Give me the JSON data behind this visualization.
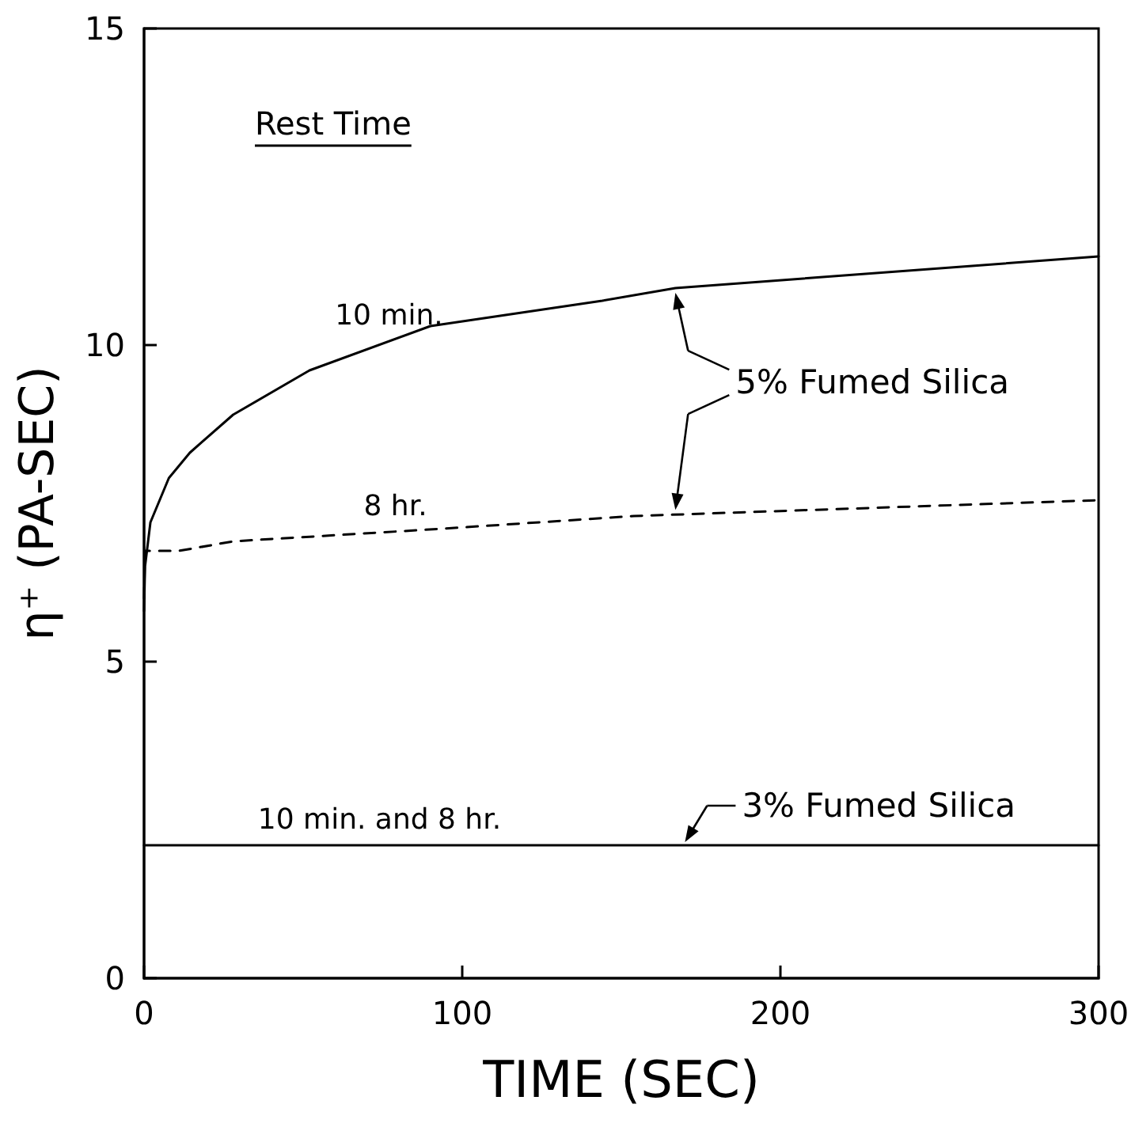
{
  "chart_data": {
    "type": "line",
    "xlabel": "TIME (SEC)",
    "ylabel": "η⁺ (PA-SEC)",
    "xlim": [
      0,
      300
    ],
    "xticks": [
      0,
      100,
      200,
      300
    ],
    "ylim": [
      0,
      15
    ],
    "yticks": [
      0,
      5,
      10,
      15
    ],
    "grid": false,
    "marker": "none",
    "series": [
      {
        "color": "#000000",
        "line_style": "solid",
        "x": [
          0,
          0.3,
          2,
          7.8,
          14.4,
          28,
          52,
          90,
          144,
          167,
          300
        ],
        "values": [
          5.8,
          6.5,
          7.2,
          7.9,
          8.3,
          8.9,
          9.6,
          10.3,
          10.7,
          10.9,
          11.4
        ]
      },
      {
        "color": "#000000",
        "line_style": "dashed",
        "x": [
          0,
          0.3,
          11,
          28,
          94,
          154,
          300
        ],
        "values": [
          6.0,
          6.75,
          6.75,
          6.9,
          7.1,
          7.3,
          7.55
        ]
      },
      {
        "color": "#000000",
        "line_style": "solid",
        "x": [
          0,
          300
        ],
        "values": [
          2.1,
          2.1
        ]
      }
    ],
    "annotations": [
      "Rest Time",
      {
        "text": "10 min.",
        "x": 77,
        "y": 10.06
      },
      {
        "text": "8 hr.",
        "x": 79,
        "y": 7.05
      },
      {
        "text": "10 min. and 8 hr.",
        "x": 74,
        "y": 2.1
      },
      {
        "text": "5% Fumed Silica",
        "x": 167,
        "y": 10.9
      },
      {
        "text": "3% Fumed Silica",
        "x": 170,
        "y": 2.1
      }
    ]
  }
}
